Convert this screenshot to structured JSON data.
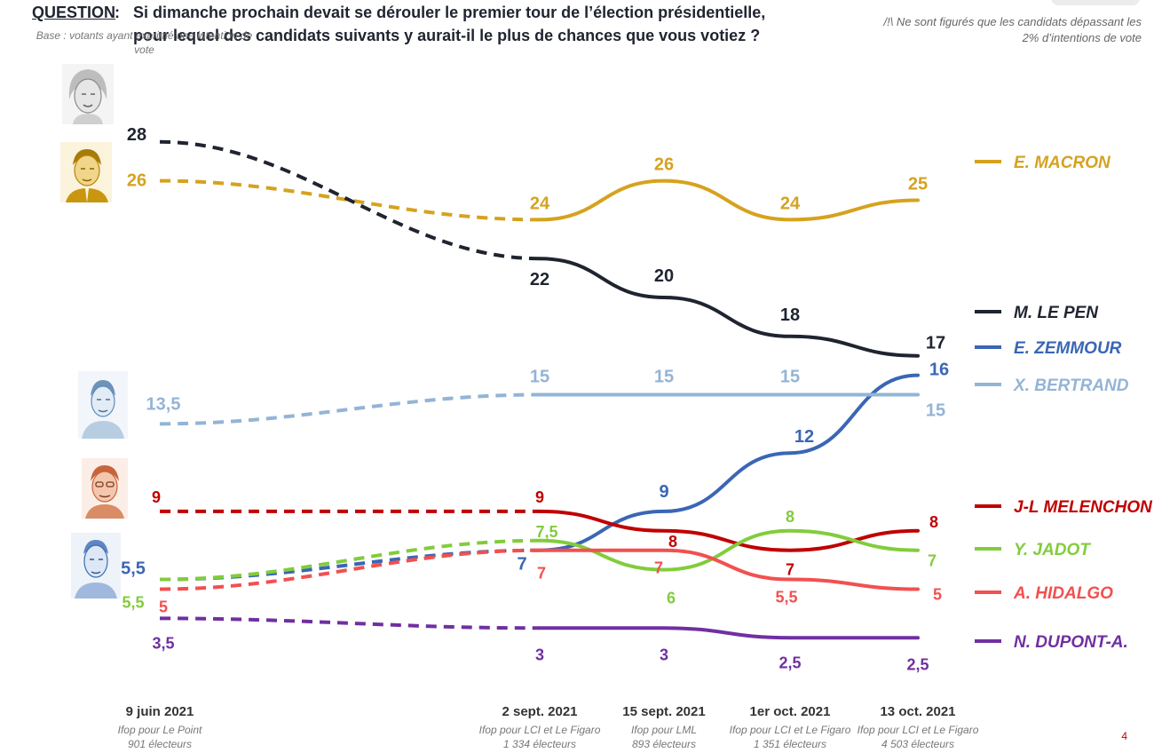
{
  "header": {
    "question_label": "QUESTION",
    "question_colon": ":",
    "question_line1": "Si dimanche prochain devait se dérouler le premier tour de l’élection présidentielle,",
    "question_line2": "pour lequel des candidats suivants y aurait-il le plus de chances que vous votiez ?",
    "base_note": "Base : votants ayant exprimé une intention de vote",
    "warning_note": "/!\\ Ne sont figurés que les candidats dépassant les 2% d’intentions de vote"
  },
  "page_number": "4",
  "portraits": [
    {
      "icon": "portrait-le-pen-icon",
      "color": "#888888"
    },
    {
      "icon": "portrait-macron-icon",
      "color": "#d4a017"
    },
    {
      "icon": "portrait-bertrand-icon",
      "color": "#5a8fbf"
    },
    {
      "icon": "portrait-melenchon-icon",
      "color": "#c8643c"
    },
    {
      "icon": "portrait-zemmour-icon",
      "color": "#3a6fb0"
    }
  ],
  "chart_data": {
    "type": "line",
    "x_labels": [
      {
        "date": "9 juin 2021",
        "source": "Ifop pour Le Point",
        "sample": "901 électeurs"
      },
      {
        "date": "2 sept. 2021",
        "source": "Ifop pour LCI et Le Figaro",
        "sample": "1 334 électeurs"
      },
      {
        "date": "15 sept. 2021",
        "source": "Ifop pour LML",
        "sample": "893 électeurs"
      },
      {
        "date": "1er oct. 2021",
        "source": "Ifop pour LCI et Le Figaro",
        "sample": "1 351 électeurs"
      },
      {
        "date": "13 oct. 2021",
        "source": "Ifop pour LCI et Le Figaro",
        "sample": "4 503 électeurs"
      }
    ],
    "dashed_segment": "between first and second survey",
    "series": [
      {
        "name": "E. MACRON",
        "color": "#d6a21e",
        "values": [
          26,
          24,
          26,
          24,
          25
        ],
        "value_labels": [
          "26",
          "24",
          "26",
          "24",
          "25"
        ]
      },
      {
        "name": "M. LE PEN",
        "color": "#1f2430",
        "values": [
          28,
          22,
          20,
          18,
          17
        ],
        "value_labels": [
          "28",
          "22",
          "20",
          "18",
          "17"
        ]
      },
      {
        "name": "E. ZEMMOUR",
        "color": "#3a66b5",
        "values": [
          5.5,
          7,
          9,
          12,
          16
        ],
        "value_labels": [
          "5,5",
          "7",
          "9",
          "12",
          "16"
        ]
      },
      {
        "name": "X. BERTRAND",
        "color": "#93b4d6",
        "values": [
          13.5,
          15,
          15,
          15,
          15
        ],
        "value_labels": [
          "13,5",
          "15",
          "15",
          "15",
          "15"
        ]
      },
      {
        "name": "J-L MELENCHON",
        "color": "#c00000",
        "values": [
          9,
          9,
          8,
          7,
          8
        ],
        "value_labels": [
          "9",
          "9",
          "8",
          "7",
          "8"
        ]
      },
      {
        "name": "Y. JADOT",
        "color": "#82cc3c",
        "values": [
          5.5,
          7.5,
          6,
          8,
          7
        ],
        "value_labels": [
          "5,5",
          "7,5",
          "6",
          "8",
          "7"
        ]
      },
      {
        "name": "A. HIDALGO",
        "color": "#f25050",
        "values": [
          5,
          7,
          7,
          5.5,
          5
        ],
        "value_labels": [
          "5",
          "7",
          "7",
          "5,5",
          "5"
        ]
      },
      {
        "name": "N. DUPONT-A.",
        "color": "#7030a0",
        "values": [
          3.5,
          3,
          3,
          2.5,
          2.5
        ],
        "value_labels": [
          "3,5",
          "3",
          "3",
          "2,5",
          "2,5"
        ]
      }
    ]
  }
}
